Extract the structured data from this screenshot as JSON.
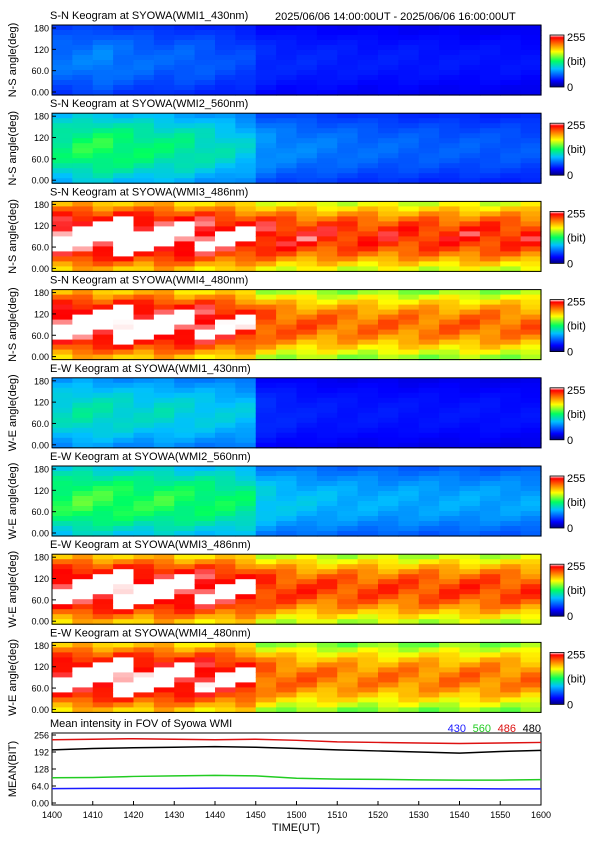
{
  "header": {
    "date_range": "2025/06/06 14:00:00UT - 2025/06/06 16:00:00UT"
  },
  "colorbar": {
    "max_label": "255",
    "unit_label": "(bit)",
    "min_label": "0"
  },
  "chart_data": [
    {
      "type": "heatmap",
      "title": "S-N Keogram at SYOWA(WMI1_430nm)",
      "ylabel": "N-S angle(deg)",
      "yticks": [
        "180",
        "120",
        "60.0",
        "0.00"
      ],
      "ylim": [
        0,
        180
      ],
      "xlim": [
        "14:00",
        "16:00"
      ],
      "colormap": "rainbow",
      "clim": [
        0,
        255
      ],
      "band_intensity": [
        60,
        62,
        65,
        60,
        58,
        55,
        56,
        54,
        50,
        48,
        40,
        38,
        38,
        37,
        36,
        35,
        35,
        35,
        34,
        34,
        33,
        33,
        33,
        32
      ]
    },
    {
      "type": "heatmap",
      "title": "S-N Keogram at SYOWA(WMI2_560nm)",
      "ylabel": "N-S angle(deg)",
      "yticks": [
        "180",
        "120",
        "60.0",
        "0.00"
      ],
      "ylim": [
        0,
        180
      ],
      "xlim": [
        "14:00",
        "16:00"
      ],
      "colormap": "rainbow",
      "clim": [
        0,
        255
      ],
      "band_intensity": [
        110,
        118,
        120,
        115,
        112,
        108,
        106,
        100,
        95,
        88,
        70,
        66,
        64,
        62,
        60,
        58,
        57,
        56,
        55,
        54,
        54,
        53,
        53,
        52
      ]
    },
    {
      "type": "heatmap",
      "title": "S-N Keogram at SYOWA(WMI3_486nm)",
      "ylabel": "N-S angle(deg)",
      "yticks": [
        "180",
        "120",
        "60.0",
        "0.00"
      ],
      "ylim": [
        0,
        180
      ],
      "xlim": [
        "14:00",
        "16:00"
      ],
      "colormap": "rainbow",
      "clim": [
        0,
        255
      ],
      "band_intensity": [
        240,
        245,
        242,
        246,
        240,
        244,
        238,
        235,
        232,
        228,
        222,
        218,
        215,
        214,
        213,
        212,
        212,
        212,
        212,
        212,
        213,
        213,
        212,
        212
      ]
    },
    {
      "type": "heatmap",
      "title": "S-N Keogram at SYOWA(WMI4_480nm)",
      "ylabel": "N-S angle(deg)",
      "yticks": [
        "180",
        "120",
        "60.0",
        "0.00"
      ],
      "ylim": [
        0,
        180
      ],
      "xlim": [
        "14:00",
        "16:00"
      ],
      "colormap": "rainbow",
      "clim": [
        0,
        255
      ],
      "band_intensity": [
        238,
        244,
        240,
        245,
        240,
        243,
        236,
        234,
        230,
        226,
        205,
        200,
        198,
        196,
        195,
        194,
        194,
        194,
        194,
        195,
        196,
        196,
        195,
        195
      ]
    },
    {
      "type": "heatmap",
      "title": "E-W Keogram at SYOWA(WMI1_430nm)",
      "ylabel": "W-E angle(deg)",
      "yticks": [
        "180",
        "120",
        "60.0",
        "0.00"
      ],
      "ylim": [
        0,
        180
      ],
      "xlim": [
        "14:00",
        "16:00"
      ],
      "colormap": "rainbow",
      "clim": [
        0,
        255
      ],
      "band_intensity": [
        95,
        100,
        98,
        95,
        92,
        94,
        90,
        88,
        86,
        84,
        40,
        38,
        36,
        35,
        34,
        34,
        34,
        33,
        33,
        33,
        33,
        33,
        32,
        32
      ]
    },
    {
      "type": "heatmap",
      "title": "E-W Keogram at SYOWA(WMI2_560nm)",
      "ylabel": "W-E angle(deg)",
      "yticks": [
        "180",
        "120",
        "60.0",
        "0.00"
      ],
      "ylim": [
        0,
        180
      ],
      "xlim": [
        "14:00",
        "16:00"
      ],
      "colormap": "rainbow",
      "clim": [
        0,
        255
      ],
      "band_intensity": [
        120,
        126,
        124,
        122,
        120,
        122,
        118,
        116,
        114,
        110,
        88,
        84,
        82,
        80,
        78,
        77,
        76,
        76,
        75,
        75,
        75,
        74,
        74,
        74
      ]
    },
    {
      "type": "heatmap",
      "title": "E-W Keogram at SYOWA(WMI3_486nm)",
      "ylabel": "W-E angle(deg)",
      "yticks": [
        "180",
        "120",
        "60.0",
        "0.00"
      ],
      "ylim": [
        0,
        180
      ],
      "xlim": [
        "14:00",
        "16:00"
      ],
      "colormap": "rainbow",
      "clim": [
        0,
        255
      ],
      "band_intensity": [
        236,
        242,
        240,
        244,
        238,
        242,
        236,
        234,
        232,
        230,
        212,
        208,
        206,
        205,
        204,
        204,
        204,
        204,
        205,
        205,
        206,
        206,
        205,
        205
      ]
    },
    {
      "type": "heatmap",
      "title": "E-W Keogram at SYOWA(WMI4_480nm)",
      "ylabel": "W-E angle(deg)",
      "yticks": [
        "180",
        "120",
        "60.0",
        "0.00"
      ],
      "ylim": [
        0,
        180
      ],
      "xlim": [
        "14:00",
        "16:00"
      ],
      "colormap": "rainbow",
      "clim": [
        0,
        255
      ],
      "band_intensity": [
        234,
        240,
        238,
        242,
        236,
        240,
        234,
        232,
        230,
        228,
        200,
        196,
        194,
        192,
        190,
        190,
        190,
        190,
        190,
        191,
        192,
        192,
        191,
        191
      ]
    },
    {
      "type": "line",
      "title": "Mean intensity in FOV of Syowa WMI",
      "ylabel": "MEAN(BIT)",
      "xlabel": "TIME(UT)",
      "ylim": [
        0,
        256
      ],
      "yticks": [
        "256",
        "192",
        "128",
        "64.0",
        "0.00"
      ],
      "x": [
        "1400",
        "1410",
        "1420",
        "1430",
        "1440",
        "1450",
        "1500",
        "1510",
        "1520",
        "1530",
        "1540",
        "1550",
        "1600"
      ],
      "series": [
        {
          "name": "430",
          "color": "#1a1aff",
          "values": [
            54,
            55,
            55,
            55,
            56,
            56,
            56,
            55,
            54,
            54,
            54,
            53,
            53
          ]
        },
        {
          "name": "560",
          "color": "#22cc22",
          "values": [
            95,
            96,
            100,
            102,
            104,
            102,
            93,
            90,
            89,
            87,
            86,
            86,
            88
          ]
        },
        {
          "name": "486",
          "color": "#dd1111",
          "values": [
            238,
            240,
            242,
            240,
            238,
            240,
            236,
            230,
            228,
            226,
            224,
            226,
            228
          ]
        },
        {
          "name": "480",
          "color": "#000000",
          "values": [
            200,
            205,
            208,
            210,
            212,
            210,
            205,
            200,
            196,
            192,
            188,
            194,
            198
          ]
        }
      ]
    }
  ]
}
